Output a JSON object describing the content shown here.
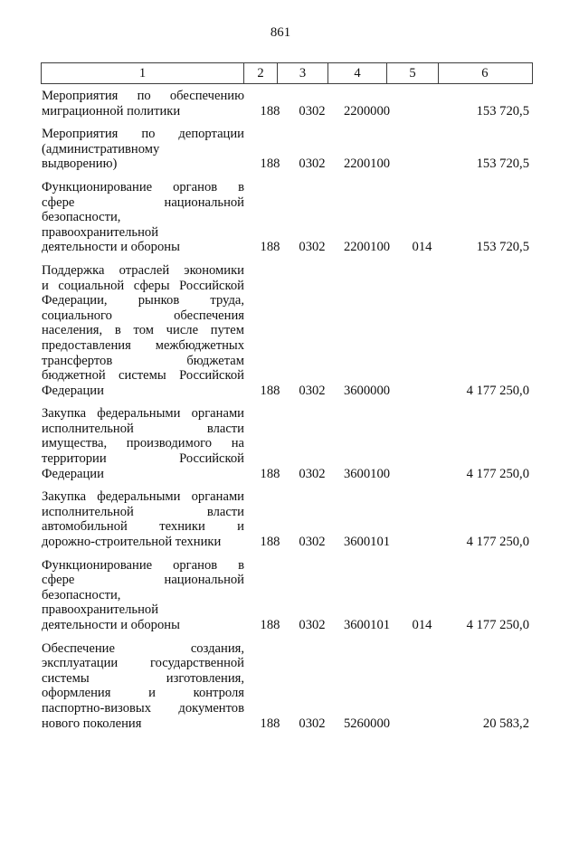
{
  "page": {
    "number": "861"
  },
  "table": {
    "columns": [
      "1",
      "2",
      "3",
      "4",
      "5",
      "6"
    ],
    "rows": [
      {
        "name_lines": [
          "Мероприятия по обеспечению",
          "миграционной политики"
        ],
        "codes": [
          "188",
          "0302",
          "2200000",
          ""
        ],
        "amount": "153 720,5"
      },
      {
        "name_lines": [
          "Мероприятия по депортации",
          "(административному",
          "выдворению)"
        ],
        "codes": [
          "188",
          "0302",
          "2200100",
          ""
        ],
        "amount": "153 720,5"
      },
      {
        "name_lines": [
          "Функционирование органов в",
          "сфере национальной",
          "безопасности,",
          "правоохранительной",
          "деятельности и обороны"
        ],
        "codes": [
          "188",
          "0302",
          "2200100",
          "014"
        ],
        "amount": "153 720,5"
      },
      {
        "name_lines": [
          "Поддержка отраслей экономики",
          "и социальной сферы Российской",
          "Федерации, рынков труда,",
          "социального обеспечения",
          "населения, в том числе путем",
          "предоставления межбюджетных",
          "трансфертов бюджетам",
          "бюджетной системы Российской",
          "Федерации"
        ],
        "codes": [
          "188",
          "0302",
          "3600000",
          ""
        ],
        "amount": "4 177 250,0"
      },
      {
        "name_lines": [
          "Закупка федеральными органами",
          "исполнительной власти",
          "имущества, производимого на",
          "территории Российской",
          "Федерации"
        ],
        "codes": [
          "188",
          "0302",
          "3600100",
          ""
        ],
        "amount": "4 177 250,0"
      },
      {
        "name_lines": [
          "Закупка федеральными органами",
          "исполнительной власти",
          "автомобильной техники и",
          "дорожно-строительной техники"
        ],
        "codes": [
          "188",
          "0302",
          "3600101",
          ""
        ],
        "amount": "4 177 250,0"
      },
      {
        "name_lines": [
          "Функционирование органов в",
          "сфере национальной",
          "безопасности,",
          "правоохранительной",
          "деятельности и обороны"
        ],
        "codes": [
          "188",
          "0302",
          "3600101",
          "014"
        ],
        "amount": "4 177 250,0"
      },
      {
        "name_lines": [
          "Обеспечение создания,",
          "эксплуатации государственной",
          "системы изготовления,",
          "оформления и контроля",
          "паспортно-визовых документов",
          "нового поколения"
        ],
        "codes": [
          "188",
          "0302",
          "5260000",
          ""
        ],
        "amount": "20 583,2"
      }
    ]
  }
}
